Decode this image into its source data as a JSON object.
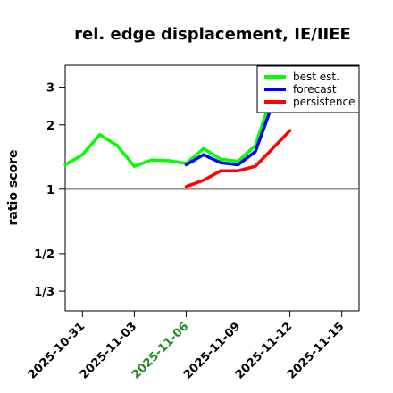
{
  "chart_data": {
    "type": "line",
    "title": "rel. edge displacement, IE/IIEE",
    "xlabel": "",
    "ylabel": "ratio score",
    "y_scale": "log",
    "ylim": [
      0.27,
      3.8
    ],
    "xlim": [
      "2025-10-30",
      "2025-11-16"
    ],
    "yticks": [
      {
        "value": 3,
        "label": "3"
      },
      {
        "value": 2,
        "label": "2"
      },
      {
        "value": 1,
        "label": "1"
      },
      {
        "value": 0.5,
        "label": "1/2"
      },
      {
        "value": 0.3333,
        "label": "1/3"
      }
    ],
    "xticks": [
      {
        "date": "2025-10-31",
        "label": "2025-10-31",
        "color": "#000000"
      },
      {
        "date": "2025-11-03",
        "label": "2025-11-03",
        "color": "#000000"
      },
      {
        "date": "2025-11-06",
        "label": "2025-11-06",
        "color": "#228B22"
      },
      {
        "date": "2025-11-09",
        "label": "2025-11-09",
        "color": "#000000"
      },
      {
        "date": "2025-11-12",
        "label": "2025-11-12",
        "color": "#000000"
      },
      {
        "date": "2025-11-15",
        "label": "2025-11-15",
        "color": "#000000"
      }
    ],
    "reference_line": 1,
    "legend_position": "top-right",
    "series": [
      {
        "name": "best est.",
        "color": "#00ff00",
        "points": [
          [
            "2025-10-30",
            1.3
          ],
          [
            "2025-10-31",
            1.45
          ],
          [
            "2025-11-01",
            1.8
          ],
          [
            "2025-11-02",
            1.6
          ],
          [
            "2025-11-03",
            1.28
          ],
          [
            "2025-11-04",
            1.37
          ],
          [
            "2025-11-05",
            1.36
          ],
          [
            "2025-11-06",
            1.32
          ],
          [
            "2025-11-07",
            1.55
          ],
          [
            "2025-11-08",
            1.38
          ],
          [
            "2025-11-09",
            1.35
          ],
          [
            "2025-11-10",
            1.6
          ],
          [
            "2025-11-11",
            2.8
          ]
        ]
      },
      {
        "name": "forecast",
        "color": "#0000ff",
        "points": [
          [
            "2025-11-06",
            1.3
          ],
          [
            "2025-11-07",
            1.45
          ],
          [
            "2025-11-08",
            1.33
          ],
          [
            "2025-11-09",
            1.3
          ],
          [
            "2025-11-10",
            1.5
          ],
          [
            "2025-11-11",
            2.5
          ],
          [
            "2025-11-12",
            2.45
          ]
        ]
      },
      {
        "name": "persistence",
        "color": "#ff0000",
        "points": [
          [
            "2025-11-06",
            1.03
          ],
          [
            "2025-11-07",
            1.1
          ],
          [
            "2025-11-08",
            1.22
          ],
          [
            "2025-11-09",
            1.22
          ],
          [
            "2025-11-10",
            1.28
          ],
          [
            "2025-11-11",
            1.55
          ],
          [
            "2025-11-12",
            1.88
          ]
        ]
      }
    ]
  }
}
